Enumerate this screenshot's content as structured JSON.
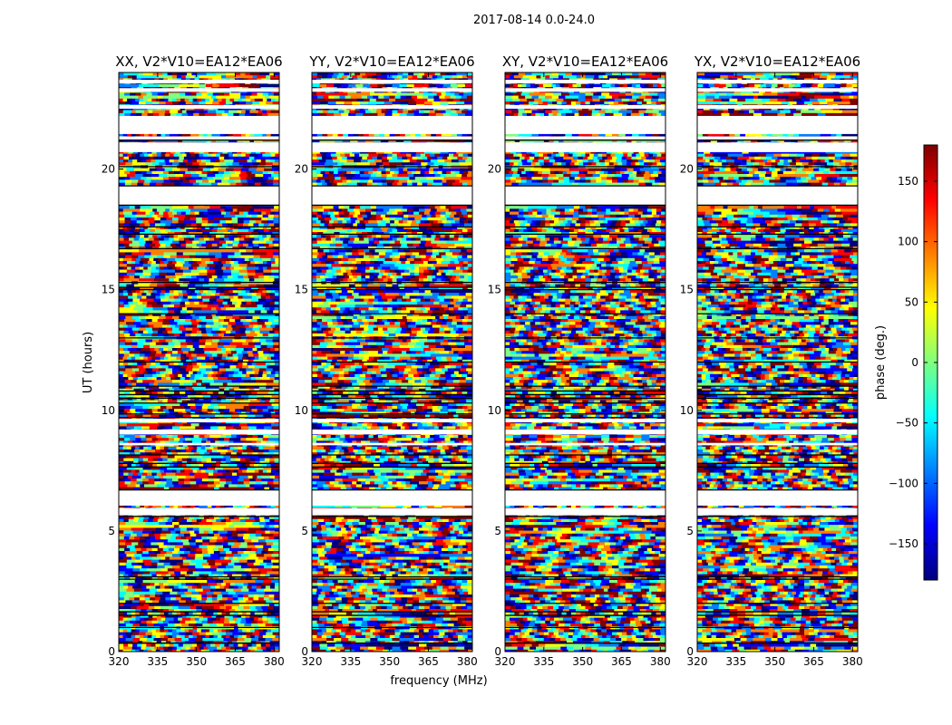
{
  "figure": {
    "suptitle": "2017-08-14 0.0-24.0",
    "ylabel": "UT (hours)",
    "xlabel": "frequency (MHz)"
  },
  "chart_data": [
    {
      "type": "heatmap",
      "title": "XX, V2*V10=EA12*EA06",
      "xlim": [
        320,
        382
      ],
      "ylim": [
        0,
        24
      ],
      "xticks": [
        320,
        335,
        350,
        365,
        380
      ],
      "yticks": [
        0,
        5,
        10,
        15,
        20
      ],
      "xlabel": "",
      "ylabel": "UT (hours)",
      "note": "dense per-channel phase image, approximated"
    },
    {
      "type": "heatmap",
      "title": "YY, V2*V10=EA12*EA06",
      "xlim": [
        320,
        382
      ],
      "ylim": [
        0,
        24
      ],
      "xticks": [
        320,
        335,
        350,
        365,
        380
      ],
      "yticks": [
        0,
        5,
        10,
        15,
        20
      ],
      "xlabel": "frequency (MHz)",
      "ylabel": "",
      "note": "dense per-channel phase image, approximated"
    },
    {
      "type": "heatmap",
      "title": "XY, V2*V10=EA12*EA06",
      "xlim": [
        320,
        382
      ],
      "ylim": [
        0,
        24
      ],
      "xticks": [
        320,
        335,
        350,
        365,
        380
      ],
      "yticks": [
        0,
        5,
        10,
        15,
        20
      ],
      "xlabel": "",
      "ylabel": "",
      "note": "dense per-channel phase image, approximated"
    },
    {
      "type": "heatmap",
      "title": "YX, V2*V10=EA12*EA06",
      "xlim": [
        320,
        382
      ],
      "ylim": [
        0,
        24
      ],
      "xticks": [
        320,
        335,
        350,
        365,
        380
      ],
      "yticks": [
        0,
        5,
        10,
        15,
        20
      ],
      "xlabel": "",
      "ylabel": "",
      "note": "dense per-channel phase image, approximated"
    }
  ],
  "colorbar": {
    "label": "phase (deg.)",
    "range": [
      -180,
      180
    ],
    "ticks": [
      150,
      100,
      50,
      0,
      -50,
      -100,
      -150
    ],
    "tick_labels": [
      "150",
      "100",
      "50",
      "0",
      "−50",
      "−100",
      "−150"
    ],
    "colormap": [
      "#00007f",
      "#0000ff",
      "#007fff",
      "#00ffff",
      "#7fff7f",
      "#ffff00",
      "#ff7f00",
      "#ff0000",
      "#7f0000"
    ]
  },
  "data_gaps_hours": [
    [
      5.65,
      5.95
    ],
    [
      6.05,
      6.7
    ],
    [
      8.55,
      8.65
    ],
    [
      9.0,
      9.2
    ],
    [
      9.5,
      9.65
    ],
    [
      18.5,
      19.3
    ],
    [
      20.7,
      21.1
    ],
    [
      21.2,
      21.35
    ],
    [
      21.45,
      22.2
    ],
    [
      22.5,
      22.65
    ],
    [
      23.2,
      23.35
    ],
    [
      23.55,
      23.7
    ]
  ],
  "flag_lines_hours": [
    0.35,
    1.0,
    1.5,
    1.65,
    2.0,
    3.0,
    3.1,
    5.6,
    6.7,
    7.65,
    7.8,
    8.15,
    9.7,
    9.85,
    10.3,
    10.5,
    10.65,
    10.8,
    11.0,
    12.0,
    13.0,
    14.0,
    15.0,
    15.1,
    15.3,
    16.7,
    17.3,
    17.6,
    18.5,
    19.3,
    20.1,
    21.2
  ]
}
